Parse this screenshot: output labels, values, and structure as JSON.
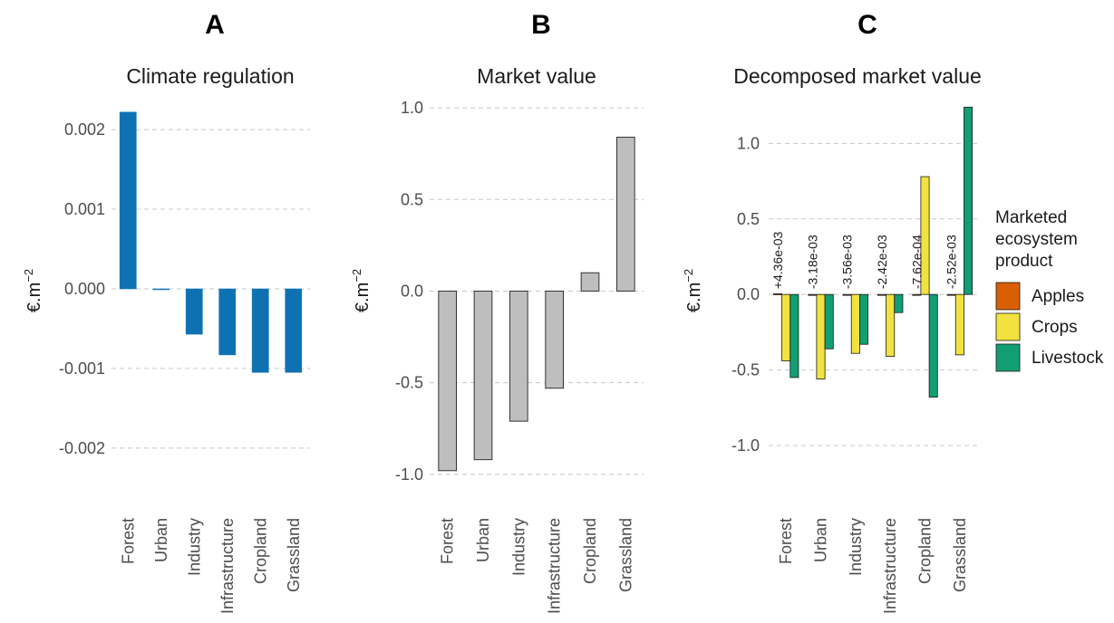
{
  "chart_data": [
    {
      "panel": "A",
      "type": "bar",
      "title": "Climate regulation",
      "ylabel": "€.m",
      "ylabel_exponent": "−2",
      "categories": [
        "Forest",
        "Urban",
        "Industry",
        "Infrastructure",
        "Cropland",
        "Grassland"
      ],
      "values": [
        0.00222,
        -1e-05,
        -0.00057,
        -0.00083,
        -0.00105,
        -0.00105
      ],
      "ylim": [
        -0.0024,
        0.00232
      ],
      "yticks": [
        0.002,
        0.001,
        0.0,
        -0.001,
        -0.002
      ],
      "ytick_labels": [
        "0.002",
        "0.001",
        "0.000",
        "-0.001",
        "-0.002"
      ],
      "bar_color": "#0e72b2",
      "grid": true
    },
    {
      "panel": "B",
      "type": "bar",
      "title": "Market value",
      "ylabel": "€.m",
      "ylabel_exponent": "−2",
      "categories": [
        "Forest",
        "Urban",
        "Industry",
        "Infrastructure",
        "Cropland",
        "Grassland"
      ],
      "values": [
        -0.98,
        -0.92,
        -0.71,
        -0.53,
        0.1,
        0.84
      ],
      "ylim": [
        -1.08,
        1.06
      ],
      "yticks": [
        1.0,
        0.5,
        0.0,
        -0.5,
        -1.0
      ],
      "ytick_labels": [
        "1.0",
        "0.5",
        "0.0",
        "-0.5",
        "-1.0"
      ],
      "bar_color": "#bebebe",
      "grid": true
    },
    {
      "panel": "C",
      "type": "bar",
      "title": "Decomposed market value",
      "ylabel": "€.m",
      "ylabel_exponent": "−2",
      "categories": [
        "Forest",
        "Urban",
        "Industry",
        "Infrastructure",
        "Cropland",
        "Grassland"
      ],
      "series": [
        {
          "name": "Apples",
          "color": "#d95f02",
          "values": [
            0.00436,
            -0.00318,
            -0.00356,
            -0.00242,
            -0.000762,
            -0.00252
          ]
        },
        {
          "name": "Crops",
          "color": "#f2e23f",
          "values": [
            -0.44,
            -0.56,
            -0.39,
            -0.41,
            0.78,
            -0.4
          ]
        },
        {
          "name": "Livestock",
          "color": "#129e73",
          "values": [
            -0.55,
            -0.36,
            -0.33,
            -0.12,
            -0.68,
            1.24
          ]
        }
      ],
      "data_labels": [
        "+4.36e-03",
        "-3.18e-03",
        "-3.56e-03",
        "-2.42e-03",
        "-7.62e-04",
        "-2.52e-03"
      ],
      "ylim": [
        -1.15,
        1.26
      ],
      "yticks": [
        1.0,
        0.5,
        0.0,
        -0.5,
        -1.0
      ],
      "ytick_labels": [
        "1.0",
        "0.5",
        "0.0",
        "-0.5",
        "-1.0"
      ],
      "legend": {
        "title_lines": [
          "Marketed",
          "ecosystem",
          "product"
        ],
        "position": "right"
      },
      "grid": true
    }
  ]
}
